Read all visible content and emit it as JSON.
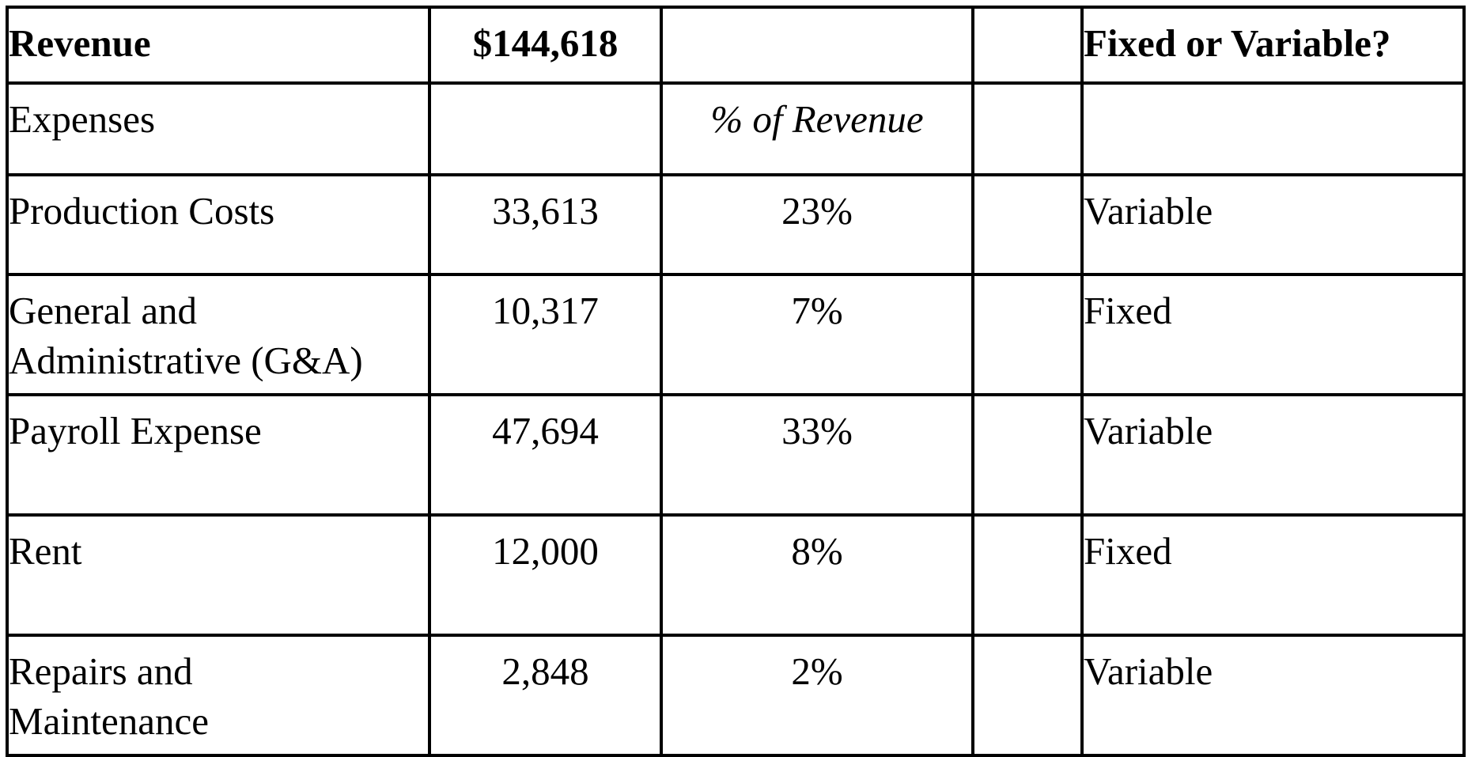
{
  "header": {
    "label": "Revenue",
    "value": "$144,618",
    "percent": "",
    "blank": "",
    "type_label": "Fixed or Variable?"
  },
  "subheader": {
    "label": "Expenses",
    "value": "",
    "percent": "% of Revenue",
    "blank": "",
    "type_label": ""
  },
  "rows": [
    {
      "label_lines": [
        "Production Costs"
      ],
      "amount": "33,613",
      "percent": "23%",
      "kind": "Variable"
    },
    {
      "label_lines": [
        "General and",
        "Administrative (G&A)"
      ],
      "amount": "10,317",
      "percent": "7%",
      "kind": "Fixed"
    },
    {
      "label_lines": [
        "Payroll Expense"
      ],
      "amount": "47,694",
      "percent": "33%",
      "kind": "Variable"
    },
    {
      "label_lines": [
        "Rent"
      ],
      "amount": "12,000",
      "percent": "8%",
      "kind": "Fixed"
    },
    {
      "label_lines": [
        "Repairs and",
        "Maintenance"
      ],
      "amount": "2,848",
      "percent": "2%",
      "kind": "Variable"
    }
  ]
}
